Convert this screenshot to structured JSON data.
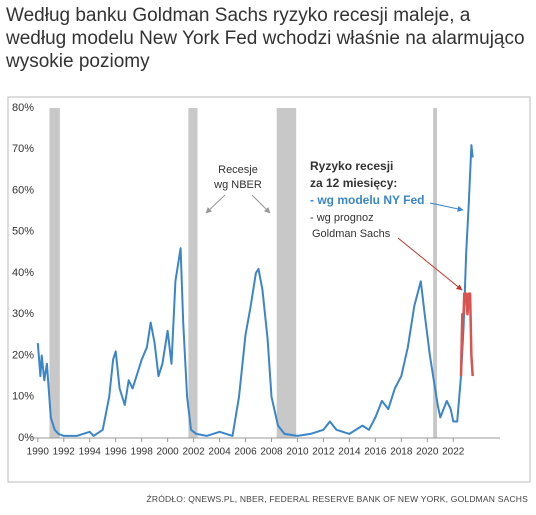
{
  "title": "Według banku Goldman Sachs ryzyko recesji maleje, a według modelu New York Fed wchodzi właśnie na alarmująco wysokie poziomy",
  "source": "ŹRÓDŁO: QNEWS.PL, NBER, FEDERAL RESERVE BANK OF NEW YORK, GOLDMAN SACHS",
  "chart_data": {
    "type": "line",
    "annotations": {
      "recessions_label": [
        "Recesje",
        "wg NBER"
      ],
      "risk_title": [
        "Ryzyko recesji",
        "za 12 miesięcy:"
      ],
      "ny_fed": "- wg modelu NY Fed",
      "goldman": [
        "- wg prognoz",
        "Goldman Sachs"
      ]
    },
    "recessions": [
      [
        1990.9,
        1991.7
      ],
      [
        2001.6,
        2002.3
      ],
      [
        2008.4,
        2009.9
      ],
      [
        2020.45,
        2020.75
      ]
    ],
    "recession_color": "#c8c8c8",
    "xlim": [
      1989.4,
      2025.6
    ],
    "xticks": [
      1990,
      1992,
      1994,
      1996,
      1998,
      2000,
      2002,
      2004,
      2006,
      2008,
      2010,
      2012,
      2014,
      2016,
      2018,
      2020,
      2022
    ],
    "ylim": [
      0,
      80
    ],
    "yticks": [
      {
        "value": 0,
        "label": "0%"
      },
      {
        "value": 10,
        "label": "10%"
      },
      {
        "value": 20,
        "label": "20%"
      },
      {
        "value": 30,
        "label": "30%"
      },
      {
        "value": 40,
        "label": "40%"
      },
      {
        "value": 50,
        "label": "50%"
      },
      {
        "value": 60,
        "label": "60%"
      },
      {
        "value": 70,
        "label": "70%"
      },
      {
        "value": 80,
        "label": "80%"
      }
    ],
    "series": [
      {
        "name": "NY Fed",
        "color": "#3a86c8",
        "x": [
          1990.0,
          1990.2,
          1990.3,
          1990.5,
          1990.7,
          1991.0,
          1991.3,
          1991.6,
          1992,
          1993,
          1994,
          1994.3,
          1995,
          1995.5,
          1995.8,
          1996,
          1996.3,
          1996.7,
          1997,
          1997.3,
          1997.7,
          1998,
          1998.4,
          1998.7,
          1999,
          1999.3,
          1999.6,
          2000,
          2000.3,
          2000.6,
          2000.9,
          2001.0,
          2001.2,
          2001.5,
          2001.8,
          2002.2,
          2003,
          2004,
          2005,
          2005.5,
          2006,
          2006.4,
          2006.8,
          2007.0,
          2007.3,
          2007.7,
          2008,
          2008.5,
          2009,
          2010,
          2011,
          2012,
          2012.5,
          2013,
          2014,
          2015,
          2015.5,
          2016,
          2016.5,
          2017,
          2017.5,
          2018,
          2018.5,
          2019,
          2019.5,
          2019.8,
          2020.2,
          2020.5,
          2020.8,
          2021,
          2021.5,
          2021.8,
          2022,
          2022.3,
          2022.6,
          2022.8,
          2023.0,
          2023.2,
          2023.4,
          2023.5
        ],
        "values": [
          23,
          15,
          20,
          14,
          18,
          5,
          2,
          1,
          0.5,
          0.5,
          1.5,
          0.5,
          2,
          10,
          19,
          21,
          12,
          8,
          14,
          12,
          16,
          19,
          22,
          28,
          23,
          15,
          18,
          26,
          18,
          38,
          44,
          46,
          28,
          10,
          2,
          1,
          0.5,
          1.5,
          0.5,
          10,
          25,
          32,
          40,
          41,
          36,
          24,
          10,
          3,
          1,
          0.5,
          1,
          2,
          4,
          2,
          1,
          3,
          2,
          5,
          9,
          7,
          12,
          15,
          22,
          32,
          38,
          30,
          20,
          14,
          8,
          5,
          9,
          7,
          4,
          4,
          15,
          27,
          45,
          57,
          71,
          68
        ]
      },
      {
        "name": "Goldman Sachs",
        "color": "#d9534f",
        "x": [
          2022.6,
          2022.7,
          2022.8,
          2022.85,
          2023.0,
          2023.1,
          2023.2,
          2023.3,
          2023.4,
          2023.5
        ],
        "values": [
          15,
          30,
          30,
          35,
          35,
          30,
          35,
          35,
          20,
          15
        ]
      }
    ]
  }
}
